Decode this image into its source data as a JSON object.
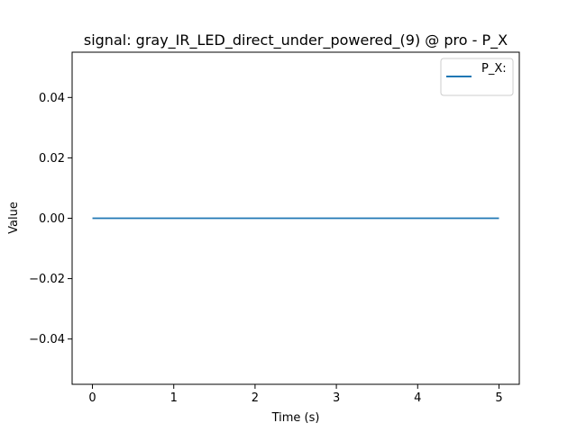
{
  "chart_data": {
    "type": "line",
    "title": "signal: gray_IR_LED_direct_under_powered_(9) @ pro - P_X",
    "xlabel": "Time (s)",
    "ylabel": "Value",
    "xlim": [
      -0.25,
      5.25
    ],
    "ylim": [
      -0.055,
      0.055
    ],
    "xticks": [
      0,
      1,
      2,
      3,
      4,
      5
    ],
    "xtick_labels": [
      "0",
      "1",
      "2",
      "3",
      "4",
      "5"
    ],
    "yticks": [
      -0.04,
      -0.02,
      0.0,
      0.02,
      0.04
    ],
    "ytick_labels": [
      "−0.04",
      "−0.02",
      "0.00",
      "0.02",
      "0.04"
    ],
    "grid": false,
    "legend_position": "top-right",
    "series": [
      {
        "name": "P_X:",
        "color": "#1f77b4",
        "x": [
          0,
          5
        ],
        "y": [
          0,
          0
        ]
      }
    ]
  }
}
